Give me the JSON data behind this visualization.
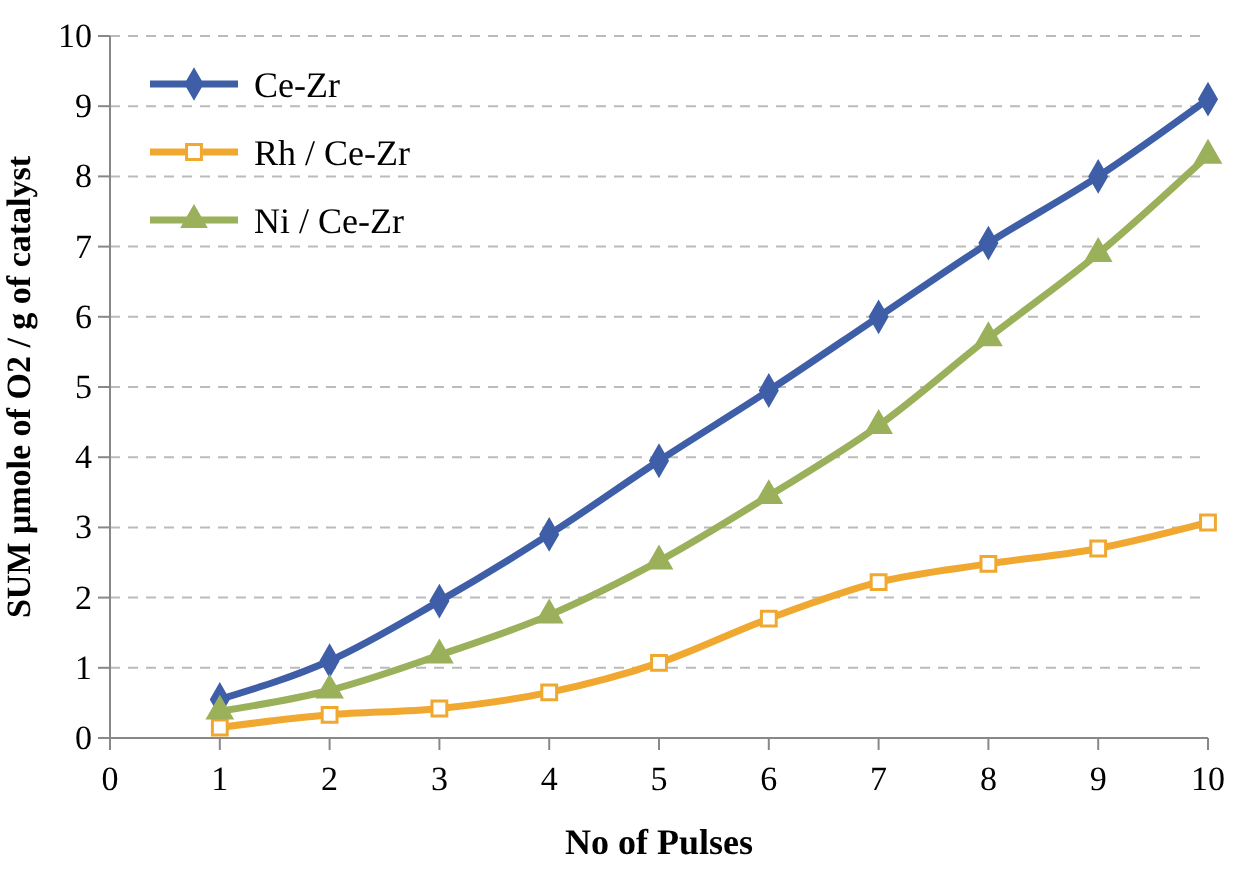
{
  "chart_data": {
    "type": "line",
    "xlabel": "No of Pulses",
    "ylabel": "SUM  μmole of O2 / g of catalyst",
    "xlim": [
      0,
      10
    ],
    "xticks": [
      0,
      1,
      2,
      3,
      4,
      5,
      6,
      7,
      8,
      9,
      10
    ],
    "ylim": [
      0,
      10
    ],
    "yticks": [
      0,
      1,
      2,
      3,
      4,
      5,
      6,
      7,
      8,
      9,
      10
    ],
    "grid": "y",
    "legend": "top left",
    "line_style": "solid",
    "x": [
      1,
      2,
      3,
      4,
      5,
      6,
      7,
      8,
      9,
      10
    ],
    "series": [
      {
        "name": "Ce-Zr",
        "color": "#3f5ea8",
        "marker": "diamond",
        "values": [
          0.55,
          1.1,
          1.95,
          2.9,
          3.95,
          4.95,
          6.0,
          7.05,
          8.0,
          9.1
        ]
      },
      {
        "name": "Rh / Ce-Zr",
        "color": "#f0a830",
        "marker": "square",
        "values": [
          0.15,
          0.33,
          0.42,
          0.65,
          1.07,
          1.7,
          2.22,
          2.48,
          2.7,
          3.07
        ]
      },
      {
        "name": "Ni / Ce-Zr",
        "color": "#9bb05a",
        "marker": "triangle",
        "values": [
          0.38,
          0.68,
          1.18,
          1.75,
          2.52,
          3.45,
          4.45,
          5.7,
          6.9,
          8.3
        ]
      }
    ]
  }
}
